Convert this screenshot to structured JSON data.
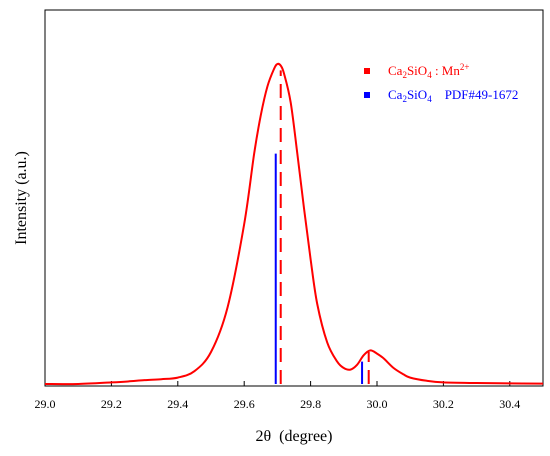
{
  "chart_data": {
    "type": "line",
    "xlabel": "2θ  (degree)",
    "ylabel": "Intensity (a.u.)",
    "xlim": [
      29.0,
      30.5
    ],
    "ylim": [
      0,
      1.0
    ],
    "xticks": [
      "29.0",
      "29.2",
      "29.4",
      "29.6",
      "29.8",
      "30.0",
      "30.2",
      "30.4"
    ],
    "grid": false,
    "legend_position": "top-right",
    "legend": [
      {
        "label_parts": [
          "Ca",
          "2",
          "SiO",
          "4",
          " : Mn",
          "2+"
        ],
        "color": "#ff0000"
      },
      {
        "label_parts": [
          "Ca",
          "2",
          "SiO",
          "4",
          "    PDF#49-1672"
        ],
        "color": "#0000ff"
      }
    ],
    "series": [
      {
        "color": "#ff0000",
        "x": [
          29.0,
          29.1,
          29.2,
          29.25,
          29.3,
          29.35,
          29.4,
          29.45,
          29.5,
          29.55,
          29.6,
          29.63,
          29.65,
          29.67,
          29.69,
          29.7,
          29.71,
          29.72,
          29.74,
          29.76,
          29.78,
          29.8,
          29.82,
          29.85,
          29.88,
          29.9,
          29.92,
          29.94,
          29.96,
          29.98,
          30.0,
          30.02,
          30.05,
          30.08,
          30.1,
          30.15,
          30.2,
          30.3,
          30.4,
          30.5
        ],
        "y": [
          0.0,
          0.0,
          0.005,
          0.008,
          0.012,
          0.015,
          0.02,
          0.04,
          0.1,
          0.24,
          0.5,
          0.72,
          0.84,
          0.93,
          0.985,
          1.0,
          0.995,
          0.97,
          0.88,
          0.72,
          0.55,
          0.39,
          0.25,
          0.13,
          0.07,
          0.05,
          0.045,
          0.06,
          0.09,
          0.105,
          0.095,
          0.08,
          0.05,
          0.03,
          0.02,
          0.01,
          0.005,
          0.003,
          0.002,
          0.001
        ]
      }
    ],
    "reference_lines": [
      {
        "x": 29.71,
        "height": 0.98,
        "color": "#ff0000",
        "style": "dashed"
      },
      {
        "x": 29.975,
        "height": 0.1,
        "color": "#ff0000",
        "style": "dashed"
      },
      {
        "x": 29.695,
        "height": 0.72,
        "color": "#0000ff",
        "style": "solid"
      },
      {
        "x": 29.955,
        "height": 0.07,
        "color": "#0000ff",
        "style": "solid"
      }
    ]
  }
}
